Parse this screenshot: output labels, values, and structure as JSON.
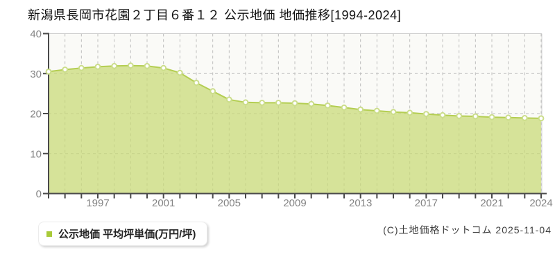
{
  "title": "新潟県長岡市花園２丁目６番１２ 公示地価 地価推移[1994-2024]",
  "legend": {
    "label": "公示地価 平均坪単価(万円/坪)",
    "marker_color": "#a8ca38"
  },
  "copyright": "(C)土地価格ドットコム 2025-11-04",
  "colors": {
    "area_fill": "rgba(199,217,117,0.72)",
    "line": "#b4ce52",
    "marker_fill": "#ffffff",
    "marker_stroke": "#cbdd8a",
    "grid": "#bdbdbd",
    "axis": "#4a4a4a",
    "tick_label": "#848484",
    "plot_border": "#d0d0d0",
    "plot_bg": "#fafaf7",
    "title_color": "#111111"
  },
  "chart_data": {
    "type": "area",
    "title": "新潟県長岡市花園２丁目６番１２ 公示地価 地価推移[1994-2024]",
    "x": [
      1994,
      1995,
      1996,
      1997,
      1998,
      1999,
      2000,
      2001,
      2002,
      2003,
      2004,
      2005,
      2006,
      2007,
      2008,
      2009,
      2010,
      2011,
      2012,
      2013,
      2014,
      2015,
      2016,
      2017,
      2018,
      2019,
      2020,
      2021,
      2022,
      2023,
      2024
    ],
    "series": [
      {
        "name": "公示地価 平均坪単価(万円/坪)",
        "values": [
          30.5,
          31.0,
          31.4,
          31.7,
          31.9,
          32.0,
          31.9,
          31.4,
          30.2,
          27.7,
          25.6,
          23.5,
          22.8,
          22.7,
          22.7,
          22.6,
          22.4,
          22.0,
          21.5,
          21.0,
          20.7,
          20.4,
          20.2,
          19.9,
          19.6,
          19.4,
          19.3,
          19.1,
          19.0,
          18.9,
          18.8
        ]
      }
    ],
    "xlabel": "",
    "ylabel": "",
    "ylim": [
      0,
      40
    ],
    "y_ticks": [
      0,
      10,
      20,
      30,
      40
    ],
    "x_tick_labels": [
      1997,
      2001,
      2005,
      2009,
      2013,
      2017,
      2021,
      2024
    ],
    "grid": "dashed vertical line at every year, dashed horizontal lines at 10/20/30",
    "legend_position": "bottom-left",
    "marker": "circle",
    "unit": "万円/坪"
  }
}
